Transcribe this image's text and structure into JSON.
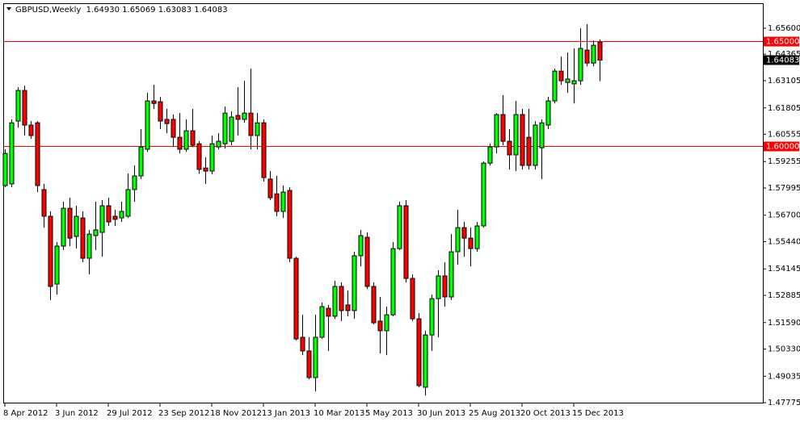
{
  "chart_data": {
    "type": "candlestick",
    "info": "GBPUSD,Weekly  1.64930 1.65069 1.63083 1.64083",
    "categories": [
      "8 Apr 2012",
      null,
      null,
      null,
      null,
      null,
      null,
      null,
      "3 Jun 2012",
      null,
      null,
      null,
      null,
      null,
      null,
      null,
      "29 Jul 2012",
      null,
      null,
      null,
      null,
      null,
      null,
      null,
      "23 Sep 2012",
      null,
      null,
      null,
      null,
      null,
      null,
      null,
      "18 Nov 2012",
      null,
      null,
      null,
      null,
      null,
      null,
      null,
      "13 Jan 2013",
      null,
      null,
      null,
      null,
      null,
      null,
      null,
      "10 Mar 2013",
      null,
      null,
      null,
      null,
      null,
      null,
      null,
      "5 May 2013",
      null,
      null,
      null,
      null,
      null,
      null,
      null,
      "30 Jun 2013",
      null,
      null,
      null,
      null,
      null,
      null,
      null,
      "25 Aug 2013",
      null,
      null,
      null,
      null,
      null,
      null,
      null,
      "20 Oct 2013",
      null,
      null,
      null,
      null,
      null,
      null,
      null,
      "15 Dec 2013",
      null,
      null,
      null,
      null
    ],
    "open": [
      1.5811,
      1.5819,
      1.6118,
      1.6264,
      1.6099,
      1.611,
      1.5792,
      1.5665,
      1.5342,
      1.5523,
      1.5703,
      1.5569,
      1.5657,
      1.5465,
      1.5573,
      1.5588,
      1.5715,
      1.5665,
      1.5657,
      1.5665,
      1.5792,
      1.5857,
      1.5984,
      1.6214,
      1.621,
      1.6126,
      1.6126,
      1.6041,
      1.5984,
      1.6072,
      1.601,
      1.5895,
      1.588,
      1.5995,
      1.601,
      1.6022,
      1.6145,
      1.6126,
      1.6156,
      1.6049,
      1.611,
      1.5842,
      1.5772,
      1.5688,
      1.5788,
      1.5465,
      1.5089,
      1.5024,
      1.4897,
      1.5089,
      1.5227,
      1.5189,
      1.5331,
      1.5243,
      1.5216,
      1.5477,
      1.5565,
      1.5331,
      1.5166,
      1.512,
      1.5196,
      1.5511,
      1.5715,
      1.5369,
      1.5177,
      1.4851,
      1.51,
      1.5273,
      1.5381,
      1.5281,
      1.5496,
      1.5611,
      1.5561,
      1.5511,
      1.5619,
      1.5918,
      1.5995,
      1.6149,
      1.6022,
      1.5957,
      1.6149,
      1.6041,
      1.5907,
      1.5991,
      1.6099,
      1.6214,
      1.6356,
      1.6302,
      1.6295,
      1.631,
      1.6456,
      1.6394,
      1.6493
    ],
    "high": [
      1.5984,
      1.6126,
      1.6279,
      1.6287,
      1.6118,
      1.6118,
      1.5819,
      1.5688,
      1.5542,
      1.5734,
      1.5753,
      1.5715,
      1.5688,
      1.56,
      1.5734,
      1.5742,
      1.5753,
      1.5696,
      1.5734,
      1.5868,
      1.5907,
      1.608,
      1.6252,
      1.6291,
      1.6233,
      1.6176,
      1.6149,
      1.6156,
      1.6126,
      1.6176,
      1.6022,
      1.5945,
      1.6049,
      1.606,
      1.6187,
      1.6164,
      1.6279,
      1.631,
      1.6368,
      1.6156,
      1.6126,
      1.588,
      1.5857,
      1.5811,
      1.5803,
      1.5473,
      1.5196,
      1.5089,
      1.5196,
      1.5254,
      1.5243,
      1.5358,
      1.535,
      1.5312,
      1.5496,
      1.56,
      1.5588,
      1.535,
      1.5281,
      1.5235,
      1.5542,
      1.5734,
      1.5742,
      1.5388,
      1.5204,
      1.512,
      1.5292,
      1.5408,
      1.5446,
      1.558,
      1.5696,
      1.5638,
      1.5611,
      1.5638,
      1.5926,
      1.601,
      1.6156,
      1.6241,
      1.608,
      1.6214,
      1.6176,
      1.6176,
      1.6118,
      1.6126,
      1.6233,
      1.6368,
      1.6425,
      1.6444,
      1.6464,
      1.656,
      1.6579,
      1.6502,
      1.65069
    ],
    "low": [
      1.5803,
      1.5803,
      1.6087,
      1.6049,
      1.6034,
      1.578,
      1.5611,
      1.5266,
      1.5292,
      1.5504,
      1.5523,
      1.5511,
      1.5446,
      1.5388,
      1.5504,
      1.5473,
      1.5619,
      1.5619,
      1.5638,
      1.5657,
      1.5734,
      1.5842,
      1.5972,
      1.6176,
      1.608,
      1.606,
      1.5995,
      1.5964,
      1.5972,
      1.5995,
      1.5868,
      1.5819,
      1.5865,
      1.5984,
      1.5987,
      1.6003,
      1.6049,
      1.611,
      1.5984,
      1.5984,
      1.583,
      1.5742,
      1.5665,
      1.5657,
      1.5446,
      1.5074,
      1.5004,
      1.4889,
      1.4832,
      1.5081,
      1.5024,
      1.5177,
      1.5166,
      1.5189,
      1.5177,
      1.5427,
      1.5319,
      1.515,
      1.5012,
      1.5004,
      1.5189,
      1.5504,
      1.535,
      1.5166,
      1.4851,
      1.4812,
      1.5024,
      1.5089,
      1.5235,
      1.5266,
      1.5434,
      1.5473,
      1.5427,
      1.5496,
      1.5611,
      1.5907,
      1.5964,
      1.6003,
      1.5888,
      1.588,
      1.5888,
      1.5888,
      1.5888,
      1.5842,
      1.608,
      1.6202,
      1.6291,
      1.6252,
      1.6202,
      1.6291,
      1.6379,
      1.6379,
      1.63083
    ],
    "close": [
      1.5964,
      1.611,
      1.6264,
      1.6099,
      1.6049,
      1.5811,
      1.5665,
      1.5331,
      1.5523,
      1.5703,
      1.5561,
      1.5665,
      1.5465,
      1.558,
      1.56,
      1.5715,
      1.5638,
      1.565,
      1.5688,
      1.5792,
      1.5857,
      1.5995,
      1.6214,
      1.6202,
      1.6118,
      1.6106,
      1.6041,
      1.5984,
      1.6072,
      1.6003,
      1.5888,
      1.588,
      1.601,
      1.6022,
      1.6156,
      1.6137,
      1.6126,
      1.6156,
      1.6049,
      1.611,
      1.5849,
      1.5753,
      1.5688,
      1.578,
      1.5465,
      1.5081,
      1.5024,
      1.4897,
      1.5089,
      1.5235,
      1.5189,
      1.5331,
      1.5216,
      1.5216,
      1.5477,
      1.5573,
      1.5331,
      1.5158,
      1.512,
      1.5196,
      1.5511,
      1.5715,
      1.5369,
      1.5177,
      1.4859,
      1.51,
      1.5273,
      1.5381,
      1.5281,
      1.5496,
      1.5611,
      1.5561,
      1.5511,
      1.5619,
      1.5918,
      1.5995,
      1.6149,
      1.6022,
      1.5957,
      1.6149,
      1.5907,
      1.5907,
      1.6099,
      1.611,
      1.6214,
      1.6356,
      1.631,
      1.6318,
      1.631,
      1.6464,
      1.6394,
      1.6479,
      1.64083
    ],
    "up_color": "#00ff00",
    "down_color": "#ff0000",
    "ylim": [
      1.4774,
      1.6679
    ],
    "yticks": [
      {
        "value": 1.656,
        "label": "1.65600"
      },
      1.64365,
      1.63105,
      1.61805,
      1.60555,
      1.59255,
      1.57995,
      {
        "value": 1.567,
        "label": "1.56700"
      },
      {
        "value": 1.5544,
        "label": "1.55440"
      },
      1.54145,
      1.52885,
      {
        "value": 1.5159,
        "label": "1.51590"
      },
      {
        "value": 1.5033,
        "label": "1.50330"
      },
      1.49035,
      1.47775
    ],
    "hlines": [
      {
        "value": 1.65,
        "label": "1.65000"
      },
      {
        "value": 1.6,
        "label": "1.60000"
      }
    ],
    "hline_color": "#ff0000",
    "last_price": {
      "value": 1.64083,
      "label": "1.64083"
    }
  }
}
